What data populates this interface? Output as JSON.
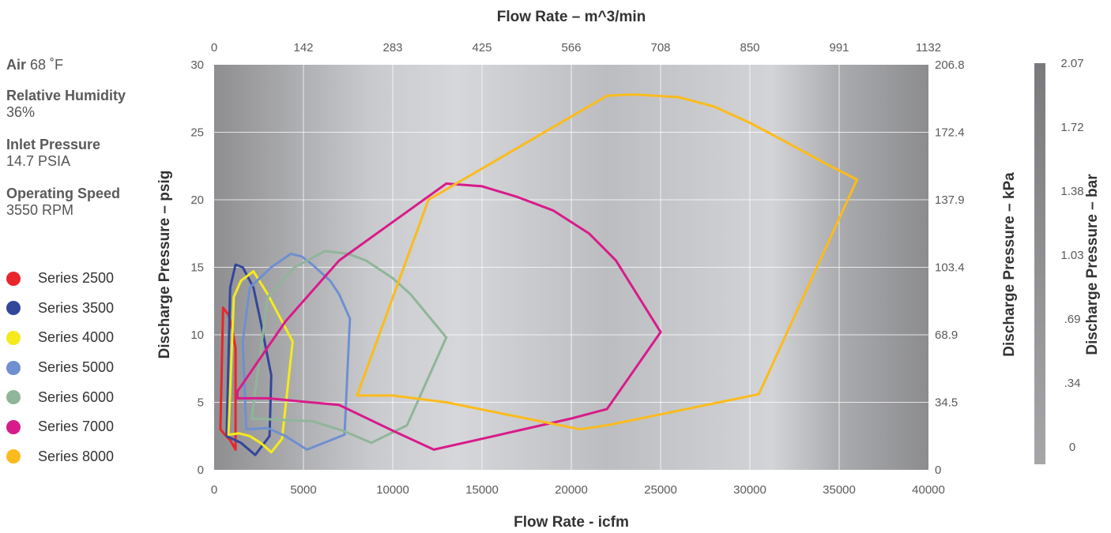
{
  "conditions": {
    "air_label": "Air",
    "air_value": "68 ˚F",
    "humidity_label": "Relative Humidity",
    "humidity_value": "36%",
    "inlet_label": "Inlet Pressure",
    "inlet_value": "14.7 PSIA",
    "speed_label": "Operating Speed",
    "speed_value": "3550 RPM"
  },
  "colors": {
    "Series 2500": "#e8262b",
    "Series 3500": "#34469a",
    "Series 4000": "#f5ea1c",
    "Series 5000": "#6f8fd0",
    "Series 6000": "#90b59a",
    "Series 7000": "#d81b8a",
    "Series 8000": "#fbbb1c"
  },
  "chart_data": {
    "type": "line",
    "xlabel": "Flow Rate - icfm",
    "ylabel": "Discharge Pressure – psig",
    "x2label": "Flow Rate – m^3/min",
    "y2label": "Discharge Pressure – kPa",
    "y3label": "Discharge Pressure – bar",
    "xlim": [
      0,
      40000
    ],
    "ylim": [
      0,
      30
    ],
    "grid": true,
    "legend_position": "left",
    "x_ticks": [
      "0",
      "5000",
      "10000",
      "15000",
      "20000",
      "25000",
      "30000",
      "35000",
      "40000"
    ],
    "y_ticks": [
      "0",
      "5",
      "10",
      "15",
      "20",
      "25",
      "30"
    ],
    "x2_ticks": [
      "0",
      "142",
      "283",
      "425",
      "566",
      "708",
      "850",
      "991",
      "1132"
    ],
    "y2_ticks": [
      "0",
      "34.5",
      "68.9",
      "103.4",
      "137.9",
      "172.4",
      "206.8"
    ],
    "y3_ticks": [
      "0",
      ".34",
      ".69",
      "1.03",
      "1.38",
      "1.72",
      "2.07"
    ],
    "series": [
      {
        "name": "Series 2500",
        "points": [
          [
            500,
            12
          ],
          [
            800,
            11.5
          ],
          [
            1000,
            10.5
          ],
          [
            1200,
            9
          ],
          [
            1200,
            1.5
          ],
          [
            900,
            2.2
          ],
          [
            600,
            2.6
          ],
          [
            350,
            3
          ],
          [
            500,
            12
          ]
        ]
      },
      {
        "name": "Series 3500",
        "points": [
          [
            1200,
            15.2
          ],
          [
            1600,
            15
          ],
          [
            2200,
            13.5
          ],
          [
            2600,
            11
          ],
          [
            3200,
            7
          ],
          [
            3100,
            2.5
          ],
          [
            2300,
            1.1
          ],
          [
            1500,
            2
          ],
          [
            700,
            2.5
          ],
          [
            900,
            13.5
          ],
          [
            1200,
            15.2
          ]
        ]
      },
      {
        "name": "Series 4000",
        "points": [
          [
            2200,
            14.7
          ],
          [
            3000,
            13
          ],
          [
            3600,
            11.5
          ],
          [
            4400,
            9.5
          ],
          [
            3800,
            2.3
          ],
          [
            3200,
            1.3
          ],
          [
            2600,
            2
          ],
          [
            2000,
            2.5
          ],
          [
            1400,
            2.7
          ],
          [
            800,
            2.6
          ],
          [
            1100,
            12.8
          ],
          [
            1500,
            14
          ],
          [
            2200,
            14.7
          ]
        ]
      },
      {
        "name": "Series 5000",
        "points": [
          [
            4300,
            16
          ],
          [
            4900,
            15.8
          ],
          [
            5500,
            15.2
          ],
          [
            6500,
            14
          ],
          [
            7000,
            13
          ],
          [
            7600,
            11.2
          ],
          [
            7300,
            2.6
          ],
          [
            5200,
            1.5
          ],
          [
            4000,
            2.5
          ],
          [
            3000,
            3.1
          ],
          [
            1800,
            3
          ],
          [
            1600,
            9.5
          ],
          [
            2000,
            13.5
          ],
          [
            3200,
            15
          ],
          [
            4300,
            16
          ]
        ]
      },
      {
        "name": "Series 6000",
        "points": [
          [
            6200,
            16.2
          ],
          [
            7500,
            16
          ],
          [
            8500,
            15.5
          ],
          [
            10000,
            14.2
          ],
          [
            11000,
            13
          ],
          [
            13000,
            9.8
          ],
          [
            10800,
            3.3
          ],
          [
            8800,
            2
          ],
          [
            7200,
            2.9
          ],
          [
            5500,
            3.6
          ],
          [
            2100,
            3.8
          ],
          [
            3000,
            12.8
          ],
          [
            4500,
            15
          ],
          [
            6200,
            16.2
          ]
        ]
      },
      {
        "name": "Series 7000",
        "points": [
          [
            13000,
            21.2
          ],
          [
            15000,
            21
          ],
          [
            17000,
            20.2
          ],
          [
            19000,
            19.2
          ],
          [
            21000,
            17.5
          ],
          [
            22500,
            15.5
          ],
          [
            25000,
            10.2
          ],
          [
            22000,
            4.5
          ],
          [
            20000,
            3.8
          ],
          [
            17000,
            2.9
          ],
          [
            15000,
            2.3
          ],
          [
            12300,
            1.5
          ],
          [
            10000,
            2.9
          ],
          [
            7000,
            4.8
          ],
          [
            3000,
            5.3
          ],
          [
            1300,
            5.3
          ],
          [
            1300,
            5.8
          ],
          [
            4000,
            11
          ],
          [
            7000,
            15.5
          ],
          [
            13000,
            21.2
          ]
        ]
      },
      {
        "name": "Series 8000",
        "points": [
          [
            22000,
            27.7
          ],
          [
            23500,
            27.8
          ],
          [
            26000,
            27.6
          ],
          [
            28000,
            26.9
          ],
          [
            30000,
            25.7
          ],
          [
            32000,
            24.3
          ],
          [
            34500,
            22.5
          ],
          [
            36000,
            21.5
          ],
          [
            30500,
            5.6
          ],
          [
            22000,
            3.3
          ],
          [
            20500,
            3
          ],
          [
            16000,
            4.2
          ],
          [
            13000,
            5
          ],
          [
            10000,
            5.5
          ],
          [
            8000,
            5.5
          ],
          [
            12000,
            20
          ],
          [
            22000,
            27.7
          ]
        ]
      }
    ]
  }
}
